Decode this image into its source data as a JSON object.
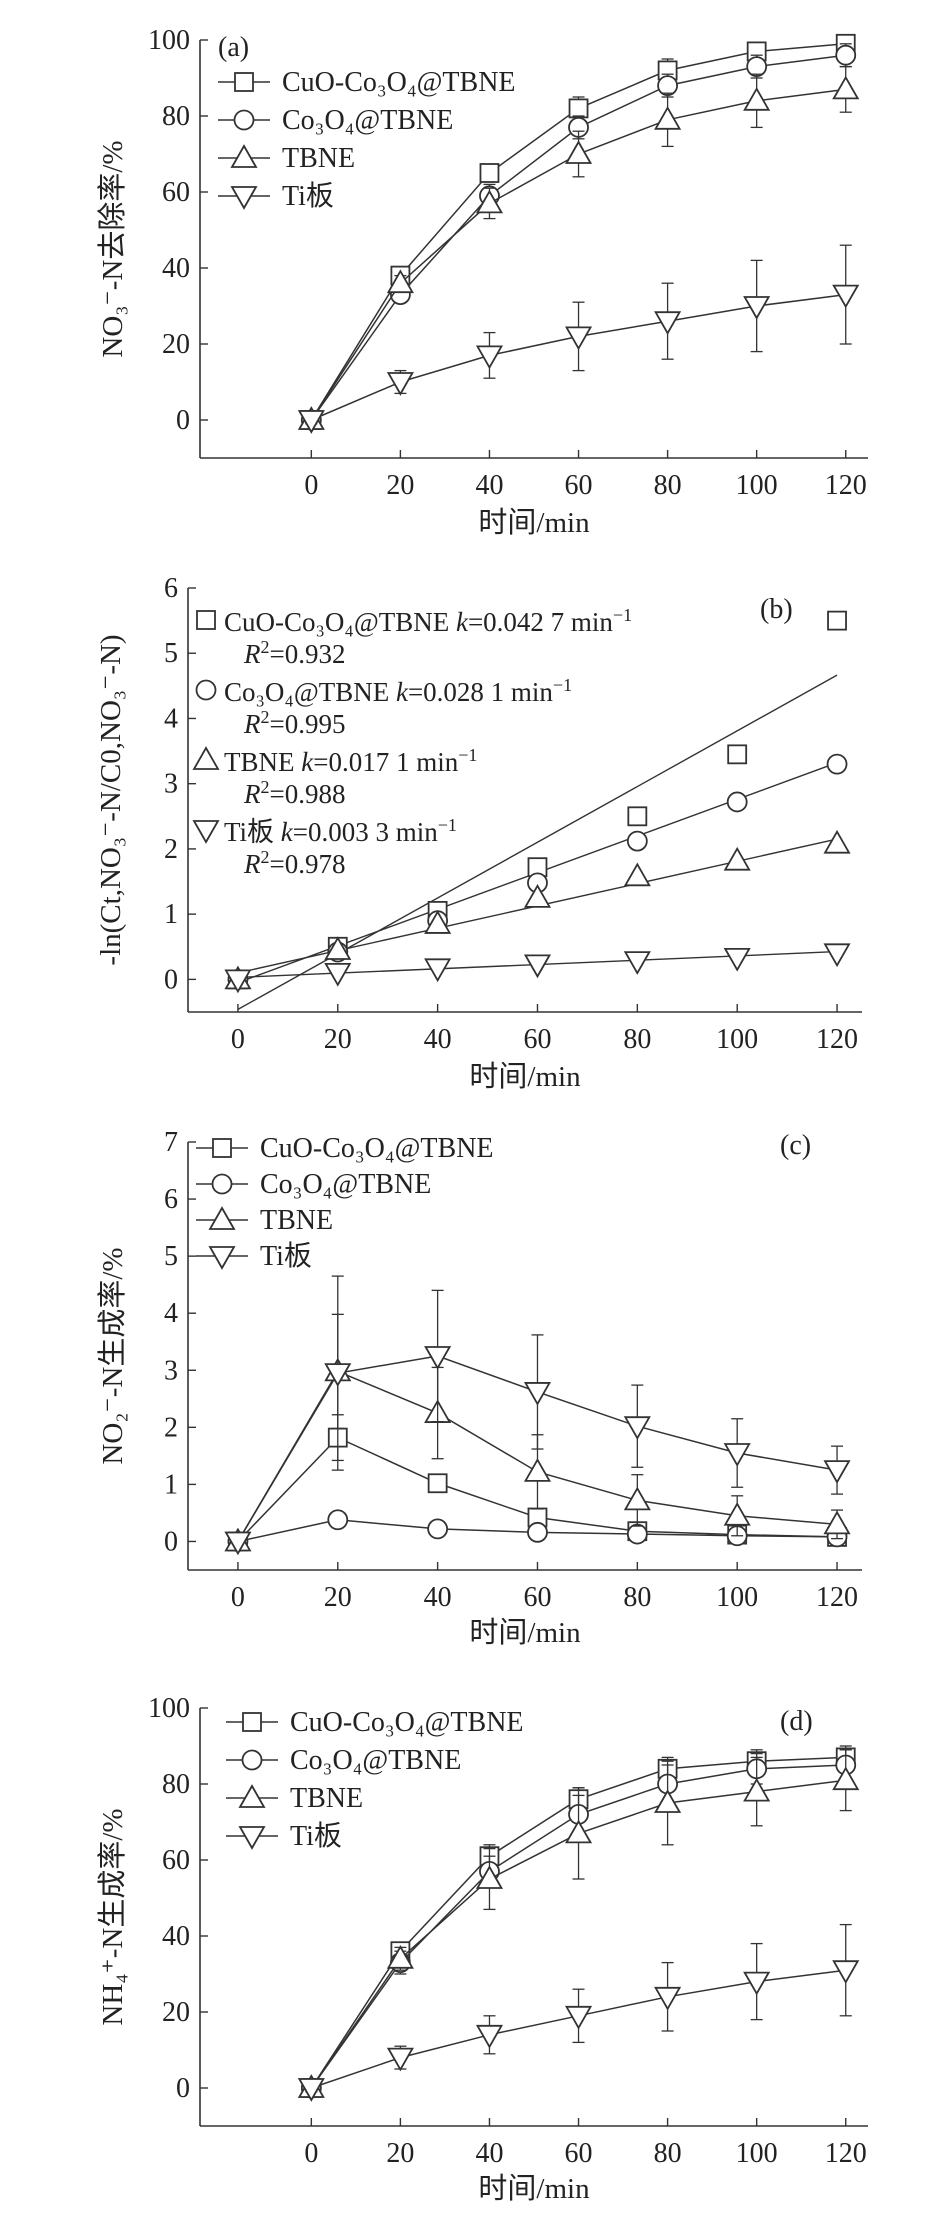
{
  "chart_data": [
    {
      "id": "a",
      "type": "line",
      "panel_label": "(a)",
      "xlabel": "时间/min",
      "ylabel": "NO₃⁻-N去除率/%",
      "xlim": [
        -25,
        125
      ],
      "ylim": [
        -10,
        100
      ],
      "xticks": [
        0,
        20,
        40,
        60,
        80,
        100,
        120
      ],
      "yticks": [
        0,
        20,
        40,
        60,
        80,
        100
      ],
      "legend_position": "top-left",
      "x": [
        0,
        20,
        40,
        60,
        80,
        100,
        120
      ],
      "series": [
        {
          "name": "CuO-Co₃O₄@TBNE",
          "marker": "square",
          "values": [
            0,
            38,
            65,
            82,
            92,
            97,
            99
          ],
          "error": [
            1,
            2,
            2,
            3,
            3,
            2,
            2
          ]
        },
        {
          "name": "Co₃O₄@TBNE",
          "marker": "circle",
          "values": [
            0,
            33,
            59,
            77,
            88,
            93,
            96
          ],
          "error": [
            1,
            2,
            3,
            3,
            3,
            3,
            3
          ]
        },
        {
          "name": "TBNE",
          "marker": "triangle-up",
          "values": [
            0,
            36,
            57,
            70,
            79,
            84,
            87
          ],
          "error": [
            1,
            2,
            4,
            6,
            7,
            7,
            6
          ]
        },
        {
          "name": "Ti板",
          "marker": "triangle-down",
          "values": [
            0,
            10,
            17,
            22,
            26,
            30,
            33
          ],
          "error": [
            1,
            3,
            6,
            9,
            10,
            12,
            13
          ]
        }
      ]
    },
    {
      "id": "b",
      "type": "scatter",
      "panel_label": "(b)",
      "xlabel": "时间/min",
      "ylabel": "-ln(Ct,NO₃⁻-N/C0,NO₃⁻-N)",
      "xlim": [
        -10,
        125
      ],
      "ylim": [
        -0.5,
        6
      ],
      "xticks": [
        0,
        20,
        40,
        60,
        80,
        100,
        120
      ],
      "yticks": [
        0,
        1,
        2,
        3,
        4,
        5,
        6
      ],
      "legend_position": "top-left",
      "x": [
        0,
        20,
        40,
        60,
        80,
        100,
        120
      ],
      "series": [
        {
          "name": "CuO-Co₃O₄@TBNE",
          "marker": "square",
          "values": [
            0,
            0.5,
            1.05,
            1.72,
            2.5,
            3.45,
            5.5
          ],
          "fit_k": 0.0427,
          "fit_b": -0.46
        },
        {
          "name": "Co₃O₄@TBNE",
          "marker": "circle",
          "values": [
            0,
            0.42,
            0.9,
            1.48,
            2.12,
            2.72,
            3.3
          ],
          "fit_k": 0.0281,
          "fit_b": -0.05
        },
        {
          "name": "TBNE",
          "marker": "triangle-up",
          "values": [
            0,
            0.45,
            0.85,
            1.25,
            1.58,
            1.82,
            2.08
          ],
          "fit_k": 0.0171,
          "fit_b": 0.1
        },
        {
          "name": "Ti板",
          "marker": "triangle-down",
          "values": [
            0,
            0.1,
            0.17,
            0.23,
            0.28,
            0.33,
            0.4
          ],
          "fit_k": 0.0033,
          "fit_b": 0.03
        }
      ],
      "legend_lines": [
        {
          "marker": "square",
          "name": "CuO-Co₃O₄@TBNE",
          "k_label": "k",
          "k_value": "=0.042 7 min",
          "k_unit_sup": "−1",
          "r2_label": "R",
          "r2_sup": "2",
          "r2_value": "=0.932"
        },
        {
          "marker": "circle",
          "name": "Co₃O₄@TBNE",
          "k_label": "k",
          "k_value": "=0.028 1 min",
          "k_unit_sup": "−1",
          "r2_label": "R",
          "r2_sup": "2",
          "r2_value": "=0.995"
        },
        {
          "marker": "triangle-up",
          "name": "TBNE",
          "k_label": "k",
          "k_value": "=0.017 1 min",
          "k_unit_sup": "−1",
          "r2_label": "R",
          "r2_sup": "2",
          "r2_value": "=0.988"
        },
        {
          "marker": "triangle-down",
          "name": "Ti板",
          "k_label": "k",
          "k_value": "=0.003 3 min",
          "k_unit_sup": "−1",
          "r2_label": "R",
          "r2_sup": "2",
          "r2_value": "=0.978"
        }
      ]
    },
    {
      "id": "c",
      "type": "line",
      "panel_label": "(c)",
      "xlabel": "时间/min",
      "ylabel": "NO₂⁻-N生成率/%",
      "xlim": [
        -10,
        125
      ],
      "ylim": [
        -0.5,
        7
      ],
      "xticks": [
        0,
        20,
        40,
        60,
        80,
        100,
        120
      ],
      "yticks": [
        0,
        1,
        2,
        3,
        4,
        5,
        6,
        7
      ],
      "legend_position": "top-left",
      "x": [
        0,
        20,
        40,
        60,
        80,
        100,
        120
      ],
      "series": [
        {
          "name": "CuO-Co₃O₄@TBNE",
          "marker": "square",
          "values": [
            0,
            1.82,
            1.02,
            0.42,
            0.18,
            0.12,
            0.08
          ],
          "error": [
            0.05,
            0.4,
            0.15,
            0.12,
            0.08,
            0.08,
            0.08
          ]
        },
        {
          "name": "Co₃O₄@TBNE",
          "marker": "circle",
          "values": [
            0,
            0.38,
            0.22,
            0.16,
            0.13,
            0.1,
            0.08
          ],
          "error": [
            0.02,
            0.05,
            0.08,
            0.1,
            0.1,
            0.12,
            0.15
          ]
        },
        {
          "name": "TBNE",
          "marker": "triangle-up",
          "values": [
            0,
            2.98,
            2.25,
            1.22,
            0.72,
            0.45,
            0.3
          ],
          "error": [
            0.05,
            1.0,
            0.8,
            0.65,
            0.45,
            0.35,
            0.25
          ]
        },
        {
          "name": "Ti板",
          "marker": "triangle-down",
          "values": [
            0,
            2.95,
            3.25,
            2.62,
            2.02,
            1.55,
            1.25
          ],
          "error": [
            0.05,
            1.7,
            1.15,
            1.0,
            0.72,
            0.6,
            0.42
          ]
        }
      ]
    },
    {
      "id": "d",
      "type": "line",
      "panel_label": "(d)",
      "xlabel": "时间/min",
      "ylabel": "NH₄⁺-N生成率/%",
      "xlim": [
        -25,
        125
      ],
      "ylim": [
        -10,
        100
      ],
      "xticks": [
        0,
        20,
        40,
        60,
        80,
        100,
        120
      ],
      "yticks": [
        0,
        20,
        40,
        60,
        80,
        100
      ],
      "legend_position": "top-left",
      "x": [
        0,
        20,
        40,
        60,
        80,
        100,
        120
      ],
      "series": [
        {
          "name": "CuO-Co₃O₄@TBNE",
          "marker": "square",
          "values": [
            0,
            36,
            61,
            76,
            84,
            86,
            87
          ],
          "error": [
            1,
            2,
            3,
            3,
            3,
            3,
            3
          ]
        },
        {
          "name": "Co₃O₄@TBNE",
          "marker": "circle",
          "values": [
            0,
            33,
            57,
            72,
            80,
            84,
            85
          ],
          "error": [
            1,
            3,
            4,
            5,
            5,
            4,
            4
          ]
        },
        {
          "name": "TBNE",
          "marker": "triangle-up",
          "values": [
            0,
            34,
            55,
            67,
            75,
            78,
            81
          ],
          "error": [
            1,
            3,
            8,
            12,
            11,
            9,
            8
          ]
        },
        {
          "name": "Ti板",
          "marker": "triangle-down",
          "values": [
            0,
            8,
            14,
            19,
            24,
            28,
            31
          ],
          "error": [
            1,
            3,
            5,
            7,
            9,
            10,
            12
          ]
        }
      ]
    }
  ]
}
